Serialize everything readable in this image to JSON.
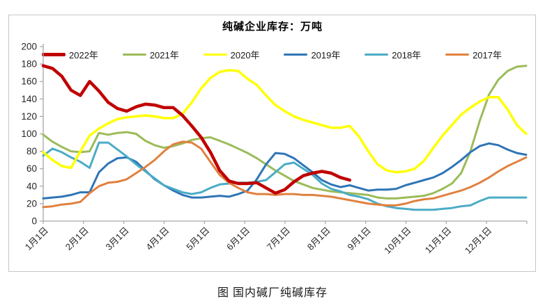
{
  "title": "纯碱企业库存：万吨",
  "caption": "图  国内碱厂纯碱库存",
  "axes": {
    "y_ticks": [
      0,
      20,
      40,
      60,
      80,
      100,
      120,
      140,
      160,
      180,
      200
    ],
    "x_labels": [
      "1月1日",
      "2月1日",
      "3月1日",
      "4月1日",
      "5月1日",
      "6月1日",
      "7月1日",
      "8月1日",
      "9月1日",
      "10月1日",
      "11月1日",
      "12月1日"
    ]
  },
  "colors": {
    "axis": "#a6a6a6",
    "frame_border": "#c6c6c6",
    "tick_label": "#262626"
  },
  "chart_data": {
    "type": "line",
    "title": "纯碱企业库存：万吨",
    "x_unit": "week_of_year",
    "x_axis_labels": [
      "1月1日",
      "2月1日",
      "3月1日",
      "4月1日",
      "5月1日",
      "6月1日",
      "7月1日",
      "8月1日",
      "9月1日",
      "10月1日",
      "11月1日",
      "12月1日"
    ],
    "ylim": [
      0,
      200
    ],
    "y_tick_step": 20,
    "weeks_per_year": 52,
    "grid": false,
    "legend_position": "top",
    "series": [
      {
        "name": "2022年",
        "color": "#c00000",
        "width": 4.5,
        "values": [
          178,
          175,
          166,
          150,
          144,
          160,
          149,
          136,
          129,
          126,
          131,
          134,
          133,
          130,
          130,
          121,
          109,
          96,
          79,
          58,
          46,
          43,
          43,
          44,
          38,
          32,
          36,
          45,
          52,
          55,
          57,
          55,
          50,
          47
        ]
      },
      {
        "name": "2021年",
        "color": "#9bbb59",
        "width": 3,
        "values": [
          99,
          91,
          85,
          80,
          79,
          80,
          101,
          99,
          101,
          102,
          100,
          92,
          87,
          84,
          86,
          89,
          93,
          95,
          96,
          92,
          88,
          83,
          78,
          72,
          65,
          58,
          52,
          46,
          42,
          38,
          36,
          34,
          33,
          32,
          31,
          30,
          27,
          26,
          26,
          27,
          28,
          29,
          32,
          37,
          43,
          55,
          80,
          115,
          145,
          162,
          172,
          177,
          178
        ]
      },
      {
        "name": "2020年",
        "color": "#ffff00",
        "width": 3.5,
        "values": [
          79,
          70,
          63,
          61,
          80,
          98,
          106,
          112,
          117,
          119,
          120,
          121,
          120,
          118,
          118,
          123,
          136,
          152,
          164,
          171,
          173,
          172,
          163,
          156,
          144,
          133,
          126,
          120,
          116,
          113,
          110,
          107,
          107,
          109,
          97,
          80,
          65,
          58,
          56,
          57,
          60,
          69,
          84,
          98,
          110,
          122,
          130,
          137,
          142,
          142,
          128,
          110,
          100
        ]
      },
      {
        "name": "2019年",
        "color": "#2e75b6",
        "width": 3,
        "values": [
          26,
          27,
          28,
          30,
          33,
          33,
          56,
          66,
          72,
          73,
          68,
          58,
          48,
          41,
          35,
          30,
          27,
          27,
          28,
          29,
          28,
          31,
          35,
          48,
          65,
          78,
          77,
          72,
          64,
          56,
          47,
          42,
          39,
          41,
          38,
          35,
          36,
          36,
          37,
          41,
          44,
          47,
          50,
          55,
          62,
          70,
          79,
          86,
          89,
          87,
          82,
          78,
          76
        ]
      },
      {
        "name": "2018年",
        "color": "#4bacc6",
        "width": 3,
        "values": [
          75,
          83,
          79,
          73,
          68,
          61,
          90,
          90,
          82,
          74,
          65,
          57,
          49,
          41,
          37,
          33,
          31,
          33,
          38,
          42,
          43,
          44,
          44,
          45,
          47,
          56,
          65,
          67,
          60,
          53,
          43,
          37,
          34,
          30,
          28,
          25,
          20,
          17,
          15,
          14,
          13,
          13,
          13,
          14,
          15,
          17,
          18,
          23,
          27,
          27,
          27,
          27,
          27
        ]
      },
      {
        "name": "2017年",
        "color": "#e0813f",
        "width": 3,
        "values": [
          16,
          17,
          19,
          20,
          22,
          32,
          40,
          44,
          45,
          48,
          55,
          62,
          70,
          80,
          88,
          91,
          90,
          83,
          68,
          53,
          44,
          38,
          33,
          31,
          31,
          30,
          31,
          31,
          30,
          30,
          29,
          28,
          26,
          24,
          22,
          20,
          19,
          18,
          18,
          20,
          23,
          25,
          26,
          29,
          32,
          35,
          39,
          44,
          50,
          57,
          63,
          68,
          73
        ]
      }
    ]
  }
}
